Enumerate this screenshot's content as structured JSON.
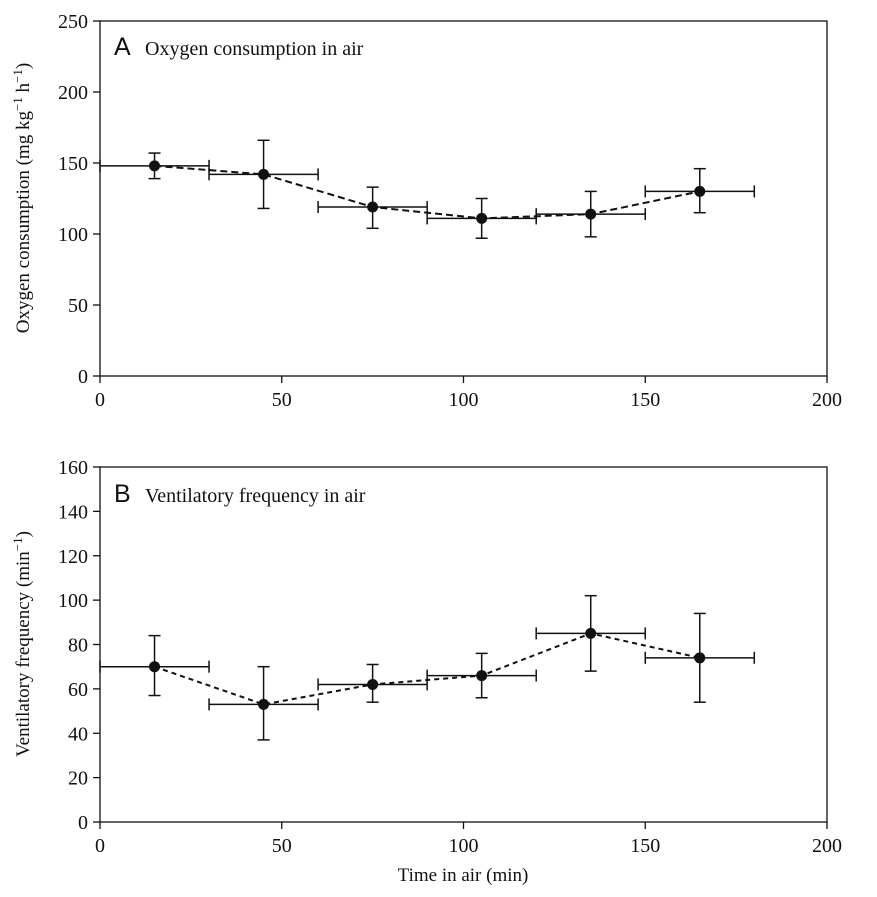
{
  "chart_data": [
    {
      "type": "scatter",
      "panel_label": "A",
      "title": "Oxygen consumption in air",
      "xlabel": "",
      "ylabel": {
        "base": "Oxygen consumption (mg kg",
        "sup1": "−1",
        "mid": " h",
        "sup2": "−1",
        "end": ")"
      },
      "xlim": [
        0,
        200
      ],
      "ylim": [
        0,
        250
      ],
      "xticks": [
        0,
        50,
        100,
        150,
        200
      ],
      "yticks": [
        0,
        50,
        100,
        150,
        200,
        250
      ],
      "line_style": "dashed",
      "grid": false,
      "points": [
        {
          "x": 15,
          "y": 148,
          "xerr": [
            0,
            30
          ],
          "yerr": [
            139,
            157
          ]
        },
        {
          "x": 45,
          "y": 142,
          "xerr": [
            30,
            60
          ],
          "yerr": [
            118,
            166
          ]
        },
        {
          "x": 75,
          "y": 119,
          "xerr": [
            60,
            90
          ],
          "yerr": [
            104,
            133
          ]
        },
        {
          "x": 105,
          "y": 111,
          "xerr": [
            90,
            120
          ],
          "yerr": [
            97,
            125
          ]
        },
        {
          "x": 135,
          "y": 114,
          "xerr": [
            120,
            150
          ],
          "yerr": [
            98,
            130
          ]
        },
        {
          "x": 165,
          "y": 130,
          "xerr": [
            150,
            180
          ],
          "yerr": [
            115,
            146
          ]
        }
      ]
    },
    {
      "type": "scatter",
      "panel_label": "B",
      "title": "Ventilatory frequency in air",
      "xlabel": "Time in air (min)",
      "ylabel": {
        "base": "Ventilatory frequency (min",
        "sup1": "−1",
        "mid": "",
        "sup2": "",
        "end": ")"
      },
      "xlim": [
        0,
        200
      ],
      "ylim": [
        0,
        160
      ],
      "xticks": [
        0,
        50,
        100,
        150,
        200
      ],
      "yticks": [
        0,
        20,
        40,
        60,
        80,
        100,
        120,
        140,
        160
      ],
      "line_style": "dashed",
      "grid": false,
      "points": [
        {
          "x": 15,
          "y": 70,
          "xerr": [
            0,
            30
          ],
          "yerr": [
            57,
            84
          ]
        },
        {
          "x": 45,
          "y": 53,
          "xerr": [
            30,
            60
          ],
          "yerr": [
            37,
            70
          ]
        },
        {
          "x": 75,
          "y": 62,
          "xerr": [
            60,
            90
          ],
          "yerr": [
            54,
            71
          ]
        },
        {
          "x": 105,
          "y": 66,
          "xerr": [
            90,
            120
          ],
          "yerr": [
            56,
            76
          ]
        },
        {
          "x": 135,
          "y": 85,
          "xerr": [
            120,
            150
          ],
          "yerr": [
            68,
            102
          ]
        },
        {
          "x": 165,
          "y": 74,
          "xerr": [
            150,
            180
          ],
          "yerr": [
            54,
            94
          ]
        }
      ]
    }
  ]
}
